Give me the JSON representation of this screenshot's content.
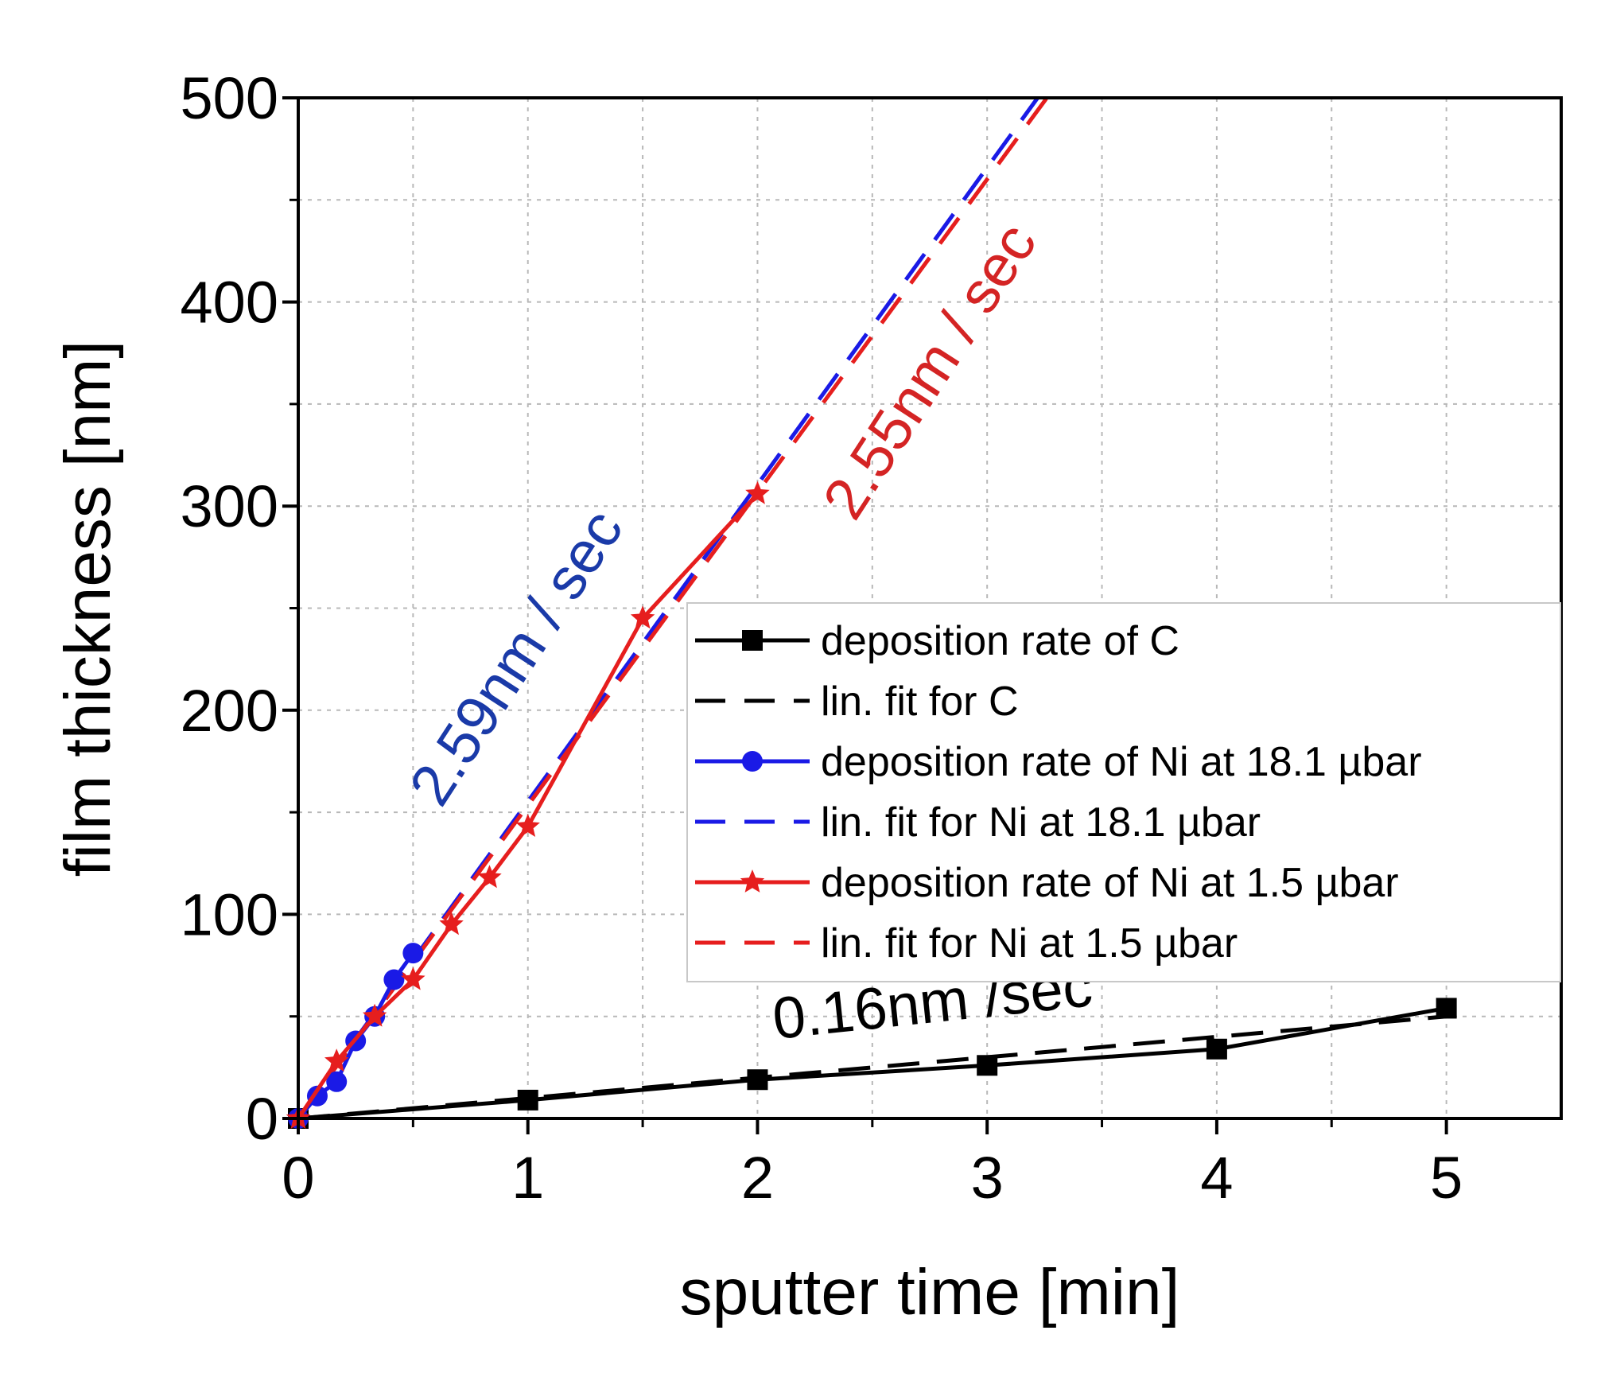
{
  "chart_data": {
    "type": "line",
    "xlabel": "sputter time [min]",
    "ylabel": "film thickness [nm]",
    "xlim": [
      0,
      5.5
    ],
    "ylim": [
      0,
      500
    ],
    "xticks": [
      0,
      1,
      2,
      3,
      4,
      5
    ],
    "yticks": [
      0,
      100,
      200,
      300,
      400,
      500
    ],
    "xtick_labels": [
      "0",
      "1",
      "2",
      "3",
      "4",
      "5"
    ],
    "ytick_labels": [
      "0",
      "100",
      "200",
      "300",
      "400",
      "500"
    ],
    "grid": true,
    "legend_position": "center-right",
    "series": [
      {
        "name": "deposition rate of C",
        "style": "solid",
        "marker": "square",
        "color": "#000000",
        "x": [
          0,
          1,
          2,
          3,
          4,
          5
        ],
        "y": [
          0,
          9,
          19,
          26,
          34,
          54
        ]
      },
      {
        "name": "lin. fit for C",
        "style": "dashed",
        "marker": "none",
        "color": "#000000",
        "x": [
          0,
          5
        ],
        "y": [
          0,
          50
        ]
      },
      {
        "name": "deposition rate of Ni at 18.1 µbar",
        "style": "solid",
        "marker": "circle",
        "color": "#1a1ae6",
        "x": [
          0,
          0.083,
          0.167,
          0.25,
          0.333,
          0.417,
          0.5
        ],
        "y": [
          0,
          11,
          18,
          38,
          50,
          68,
          81
        ]
      },
      {
        "name": "lin. fit for Ni at 18.1 µbar",
        "style": "dashed",
        "marker": "none",
        "color": "#1a1ae6",
        "x": [
          0,
          3.22
        ],
        "y": [
          0,
          500
        ]
      },
      {
        "name": "deposition rate of Ni at 1.5 µbar",
        "style": "solid",
        "marker": "star",
        "color": "#e61e1e",
        "x": [
          0,
          0.167,
          0.333,
          0.5,
          0.667,
          0.833,
          1,
          1.5,
          2
        ],
        "y": [
          0,
          28,
          50,
          68,
          95,
          118,
          143,
          245,
          306
        ]
      },
      {
        "name": "lin. fit for Ni at 1.5 µbar",
        "style": "dashed",
        "marker": "none",
        "color": "#e61e1e",
        "x": [
          0,
          3.26
        ],
        "y": [
          0,
          500
        ]
      }
    ],
    "annotations": [
      {
        "text": "2.59nm / sec",
        "color": "#1a3aa8"
      },
      {
        "text": "2.55nm / sec",
        "color": "#d42424"
      },
      {
        "text": "0.16nm /sec",
        "color": "#000000"
      }
    ]
  }
}
